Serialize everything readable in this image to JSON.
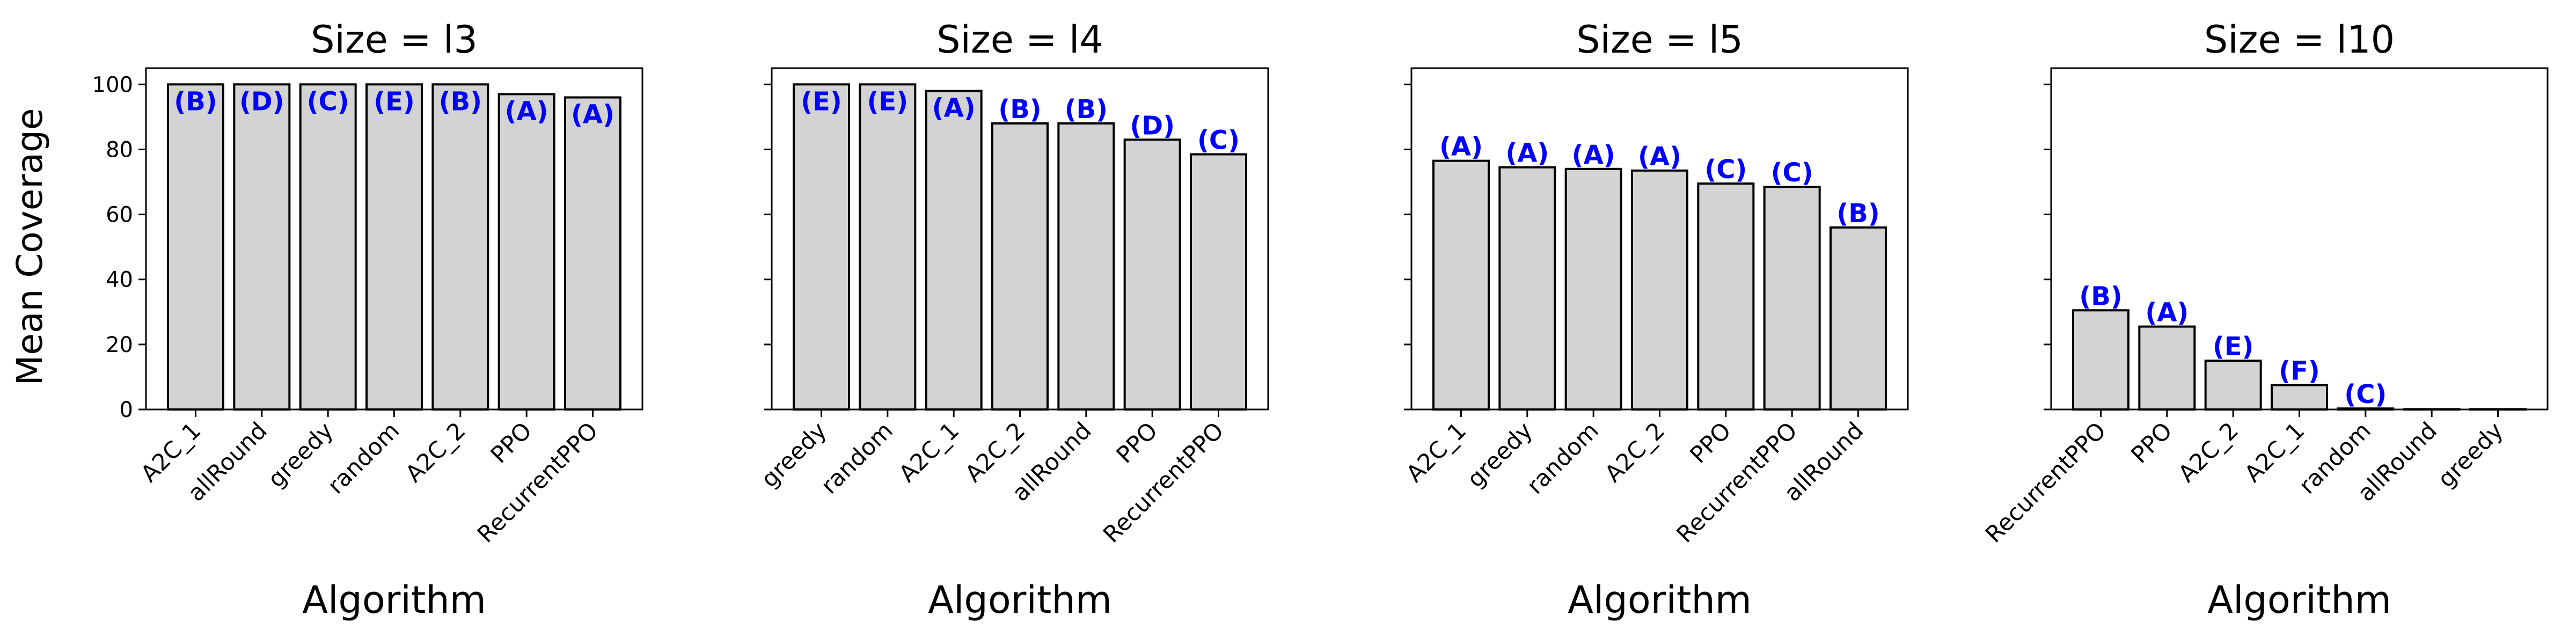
{
  "figure": {
    "ylabel": "Mean Coverage",
    "yticks": [
      "0",
      "20",
      "40",
      "60",
      "80",
      "100"
    ],
    "colors": {
      "bar_fill": "#d3d3d3",
      "bar_edge": "#000000",
      "letter": "#0000ff"
    }
  },
  "chart_data": [
    {
      "type": "bar",
      "title": "Size = l3",
      "xlabel": "Algorithm",
      "ylabel": "Mean Coverage",
      "ylim": [
        0,
        105
      ],
      "categories": [
        "A2C_1",
        "allRound",
        "greedy",
        "random",
        "A2C_2",
        "PPO",
        "RecurrentPPO"
      ],
      "values": [
        100,
        100,
        100,
        100,
        100,
        97,
        96
      ],
      "annotations": [
        "(B)",
        "(D)",
        "(C)",
        "(E)",
        "(B)",
        "(A)",
        "(A)"
      ],
      "grid": false
    },
    {
      "type": "bar",
      "title": "Size = l4",
      "xlabel": "Algorithm",
      "ylabel": "",
      "ylim": [
        0,
        105
      ],
      "categories": [
        "greedy",
        "random",
        "A2C_1",
        "A2C_2",
        "allRound",
        "PPO",
        "RecurrentPPO"
      ],
      "values": [
        100,
        100,
        98,
        88,
        88,
        83,
        78.5
      ],
      "annotations": [
        "(E)",
        "(E)",
        "(A)",
        "(B)",
        "(B)",
        "(D)",
        "(C)"
      ],
      "grid": false
    },
    {
      "type": "bar",
      "title": "Size = l5",
      "xlabel": "Algorithm",
      "ylabel": "",
      "ylim": [
        0,
        105
      ],
      "categories": [
        "A2C_1",
        "greedy",
        "random",
        "A2C_2",
        "PPO",
        "RecurrentPPO",
        "allRound"
      ],
      "values": [
        76.5,
        74.5,
        74,
        73.5,
        69.5,
        68.5,
        56
      ],
      "annotations": [
        "(A)",
        "(A)",
        "(A)",
        "(A)",
        "(C)",
        "(C)",
        "(B)"
      ],
      "grid": false
    },
    {
      "type": "bar",
      "title": "Size = l10",
      "xlabel": "Algorithm",
      "ylabel": "",
      "ylim": [
        0,
        105
      ],
      "categories": [
        "RecurrentPPO",
        "PPO",
        "A2C_2",
        "A2C_1",
        "random",
        "allRound",
        "greedy"
      ],
      "values": [
        30.5,
        25.5,
        15,
        7.5,
        0.3,
        0.1,
        0.1
      ],
      "annotations": [
        "(B)",
        "(A)",
        "(E)",
        "(F)",
        "(C)",
        "",
        ""
      ],
      "grid": false
    }
  ]
}
